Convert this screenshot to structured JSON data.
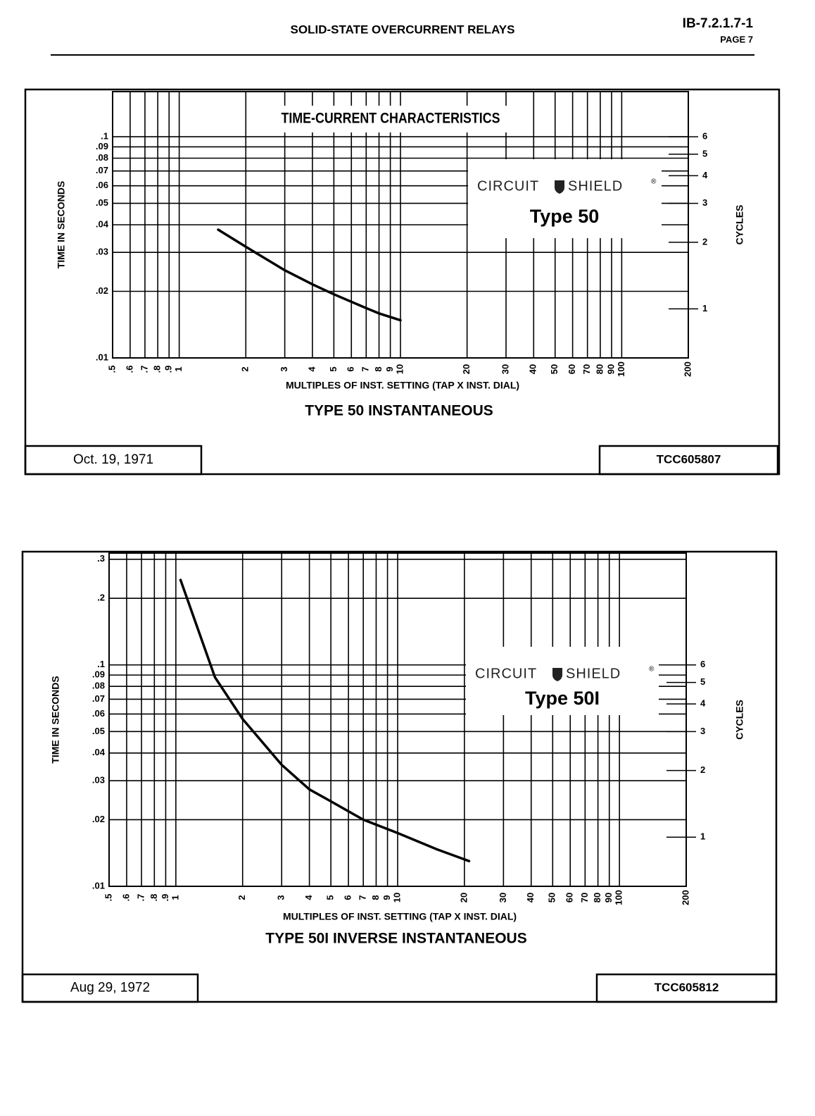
{
  "header": {
    "title": "SOLID-STATE OVERCURRENT RELAYS",
    "doc_number": "IB-7.2.1.7-1",
    "page": "PAGE 7"
  },
  "chart_data": [
    {
      "type": "line",
      "heading": "TIME-CURRENT CHARACTERISTICS",
      "title": "TYPE 50 INSTANTANEOUS",
      "xlabel": "MULTIPLES OF INST. SETTING (TAP X INST. DIAL)",
      "ylabel": "TIME IN SECONDS",
      "y2label": "CYCLES",
      "logo_left": "CIRCUIT",
      "logo_right": "SHIELD",
      "logo_mark": "®",
      "model": "Type 50",
      "date": "Oct. 19, 1971",
      "drawing_no": "TCC605807",
      "xscale": "log",
      "yscale": "log",
      "grid": true,
      "xlim": [
        0.5,
        200
      ],
      "xticks": [
        {
          "value": 0.5,
          "label": ".5"
        },
        {
          "value": 0.6,
          "label": ".6"
        },
        {
          "value": 0.7,
          "label": ".7"
        },
        {
          "value": 0.8,
          "label": ".8"
        },
        {
          "value": 0.9,
          "label": ".9"
        },
        1,
        2,
        3,
        4,
        5,
        6,
        7,
        8,
        9,
        10,
        20,
        30,
        40,
        50,
        60,
        70,
        80,
        90,
        100,
        200
      ],
      "ylim": [
        0.01,
        0.16
      ],
      "yticks": [
        {
          "value": 0.01,
          "label": ".01"
        },
        {
          "value": 0.02,
          "label": ".02"
        },
        {
          "value": 0.03,
          "label": ".03"
        },
        {
          "value": 0.04,
          "label": ".04"
        },
        {
          "value": 0.05,
          "label": ".05"
        },
        {
          "value": 0.06,
          "label": ".06"
        },
        {
          "value": 0.07,
          "label": ".07"
        },
        {
          "value": 0.08,
          "label": ".08"
        },
        {
          "value": 0.09,
          "label": ".09"
        },
        {
          "value": 0.1,
          "label": ".1"
        }
      ],
      "y2lim": [
        0.6,
        9.6
      ],
      "y2ticks": [
        1,
        2,
        3,
        4,
        5,
        6
      ],
      "x": [
        1.5,
        2,
        3,
        4,
        5,
        7,
        8,
        10
      ],
      "series": [
        {
          "color": "#000000",
          "values": [
            0.038,
            0.0318,
            0.0249,
            0.0215,
            0.0194,
            0.0168,
            0.0159,
            0.0148
          ]
        }
      ]
    },
    {
      "type": "line",
      "title": "TYPE 50I INVERSE INSTANTANEOUS",
      "xlabel": "MULTIPLES OF INST. SETTING (TAP X INST. DIAL)",
      "ylabel": "TIME IN SECONDS",
      "y2label": "CYCLES",
      "logo_left": "CIRCUIT",
      "logo_right": "SHIELD",
      "logo_mark": "®",
      "model": "Type 50I",
      "date": "Aug 29, 1972",
      "drawing_no": "TCC605812",
      "xscale": "log",
      "yscale": "log",
      "grid": true,
      "xlim": [
        0.5,
        200
      ],
      "xticks": [
        {
          "value": 0.5,
          "label": ".5"
        },
        {
          "value": 0.6,
          "label": ".6"
        },
        {
          "value": 0.7,
          "label": ".7"
        },
        {
          "value": 0.8,
          "label": ".8"
        },
        {
          "value": 0.9,
          "label": ".9"
        },
        1,
        2,
        3,
        4,
        5,
        6,
        7,
        8,
        9,
        10,
        20,
        30,
        40,
        50,
        60,
        70,
        80,
        90,
        100,
        200
      ],
      "ylim": [
        0.01,
        0.32
      ],
      "yticks": [
        {
          "value": 0.01,
          "label": ".01"
        },
        {
          "value": 0.02,
          "label": ".02"
        },
        {
          "value": 0.03,
          "label": ".03"
        },
        {
          "value": 0.04,
          "label": ".04"
        },
        {
          "value": 0.05,
          "label": ".05"
        },
        {
          "value": 0.06,
          "label": ".06"
        },
        {
          "value": 0.07,
          "label": ".07"
        },
        {
          "value": 0.08,
          "label": ".08"
        },
        {
          "value": 0.09,
          "label": ".09"
        },
        {
          "value": 0.1,
          "label": ".1"
        },
        {
          "value": 0.2,
          "label": ".2"
        },
        {
          "value": 0.3,
          "label": ".3"
        }
      ],
      "y2lim": [
        0.6,
        19.2
      ],
      "y2ticks": [
        1,
        2,
        3,
        4,
        5,
        6
      ],
      "x": [
        1.05,
        1.5,
        2,
        3,
        4,
        5,
        7,
        10,
        15,
        21
      ],
      "series": [
        {
          "color": "#000000",
          "values": [
            0.242,
            0.088,
            0.057,
            0.0354,
            0.0274,
            0.0242,
            0.02,
            0.0174,
            0.0147,
            0.013
          ]
        }
      ]
    }
  ]
}
